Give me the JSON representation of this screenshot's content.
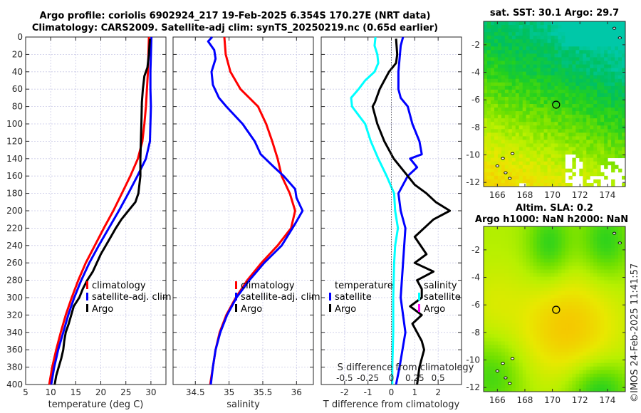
{
  "header": {
    "title_line1": "Argo profile: coriolis 6902924_217 19-Feb-2025 6.354S 170.27E (NRT data)",
    "title_line2": "Climatology: CARS2009. Satellite-adj clim: synTS_20250219.nc (0.65d earlier)"
  },
  "watermark": "©IMOS 24-Feb-2025 11:41:57",
  "colors": {
    "climatology": "#ff0000",
    "satellite": "#0000ff",
    "argo": "#000000",
    "salinity_satellite": "#00ffff",
    "salinity_argo": "#ff00ff"
  },
  "chart_data": [
    {
      "type": "line",
      "id": "temperature",
      "xlabel": "temperature (deg C)",
      "ylabel": "",
      "xlim": [
        5,
        33
      ],
      "ylim": [
        400,
        0
      ],
      "xticks": [
        5,
        10,
        15,
        20,
        25,
        30
      ],
      "yticks": [
        0,
        20,
        40,
        60,
        80,
        100,
        120,
        140,
        160,
        180,
        200,
        220,
        240,
        260,
        280,
        300,
        320,
        340,
        360,
        380,
        400
      ],
      "grid": true,
      "legend": {
        "placement": "lower-middle",
        "entries": [
          "climatology",
          "satellite-adj. clim",
          "Argo"
        ]
      },
      "series": [
        {
          "name": "climatology",
          "color": "#ff0000",
          "depth": [
            0,
            20,
            40,
            60,
            80,
            100,
            120,
            140,
            160,
            180,
            200,
            220,
            240,
            260,
            280,
            300,
            320,
            340,
            360,
            380,
            400
          ],
          "values": [
            29.6,
            29.5,
            29.4,
            29.2,
            29.0,
            28.7,
            28.3,
            27.4,
            25.9,
            24.2,
            22.5,
            20.6,
            18.8,
            17.0,
            15.5,
            14.2,
            13.0,
            12.0,
            11.1,
            10.3,
            9.7
          ]
        },
        {
          "name": "satellite-adj. clim",
          "color": "#0000ff",
          "depth": [
            0,
            20,
            40,
            60,
            80,
            100,
            120,
            140,
            160,
            180,
            200,
            220,
            240,
            260,
            280,
            300,
            320,
            340,
            360,
            380,
            400
          ],
          "values": [
            30.1,
            30.0,
            29.9,
            29.9,
            30.0,
            29.9,
            29.8,
            29.0,
            27.3,
            25.5,
            23.6,
            21.6,
            19.6,
            17.7,
            16.1,
            14.7,
            13.5,
            12.5,
            11.5,
            10.7,
            10.1
          ]
        },
        {
          "name": "Argo",
          "color": "#000000",
          "depth": [
            2,
            20,
            35,
            45,
            60,
            75,
            100,
            120,
            140,
            160,
            180,
            190,
            200,
            210,
            220,
            230,
            240,
            250,
            260,
            270,
            280,
            290,
            300,
            310,
            320,
            330,
            340,
            350,
            360,
            370,
            380,
            390,
            400
          ],
          "values": [
            29.8,
            29.6,
            29.3,
            28.7,
            28.4,
            28.2,
            28.1,
            28.0,
            27.9,
            27.9,
            27.5,
            26.9,
            25.5,
            24.1,
            23.0,
            22.0,
            21.0,
            20.0,
            19.2,
            18.4,
            17.3,
            16.4,
            15.7,
            14.6,
            14.1,
            13.6,
            13.0,
            12.7,
            12.5,
            12.1,
            11.6,
            11.1,
            10.8
          ]
        }
      ]
    },
    {
      "type": "line",
      "id": "salinity",
      "xlabel": "salinity",
      "xlim": [
        34.17,
        36.25
      ],
      "ylim": [
        400,
        0
      ],
      "xticks": [
        34.5,
        35,
        35.5,
        36
      ],
      "grid": true,
      "legend": {
        "placement": "lower-middle",
        "entries": [
          "climatology",
          "satellite-adj. clim",
          "Argo"
        ]
      },
      "series": [
        {
          "name": "climatology",
          "color": "#ff0000",
          "depth": [
            0,
            20,
            40,
            60,
            80,
            100,
            120,
            140,
            160,
            180,
            200,
            220,
            240,
            260,
            280,
            300,
            320,
            340,
            360,
            380,
            400
          ],
          "values": [
            34.93,
            34.95,
            35.02,
            35.17,
            35.43,
            35.55,
            35.64,
            35.72,
            35.78,
            35.9,
            35.98,
            35.92,
            35.72,
            35.48,
            35.27,
            35.1,
            34.96,
            34.86,
            34.8,
            34.76,
            34.72
          ]
        },
        {
          "name": "satellite-adj. clim",
          "color": "#0000ff",
          "depth": [
            0,
            5,
            15,
            25,
            40,
            55,
            70,
            80,
            100,
            120,
            135,
            150,
            160,
            175,
            185,
            200,
            215,
            240,
            260,
            280,
            300,
            320,
            340,
            360,
            380,
            400
          ],
          "values": [
            34.75,
            34.69,
            34.78,
            34.8,
            34.74,
            34.76,
            34.85,
            34.96,
            35.2,
            35.38,
            35.47,
            35.67,
            35.81,
            35.98,
            36.0,
            36.09,
            35.98,
            35.78,
            35.52,
            35.3,
            35.11,
            34.97,
            34.87,
            34.8,
            34.76,
            34.73
          ]
        }
      ]
    },
    {
      "type": "line",
      "id": "difference",
      "xlabel": "T difference from climatology",
      "top_axis_label": "S difference from climatology",
      "xlim": [
        -3,
        3
      ],
      "ylim": [
        400,
        0
      ],
      "xticks": [
        -2,
        -1,
        0,
        1,
        2
      ],
      "s_xticks": [
        -0.5,
        -0.25,
        0,
        0.25,
        0.5
      ],
      "s_xlim": [
        -0.75,
        0.75
      ],
      "grid": true,
      "legend_temperature": {
        "placement": "lower-left",
        "title": "temperature",
        "entries": [
          "satellite",
          "Argo"
        ]
      },
      "legend_salinity": {
        "placement": "lower-right",
        "title": "salinity",
        "entries": [
          "satellite",
          "Argo"
        ]
      },
      "series": [
        {
          "name": "T satellite",
          "color": "#0000ff",
          "axis": "T",
          "depth": [
            0,
            10,
            40,
            60,
            70,
            80,
            100,
            120,
            135,
            140,
            150,
            160,
            180,
            200,
            220,
            260,
            300,
            340,
            380,
            400
          ],
          "values": [
            0.5,
            0.4,
            0.3,
            0.3,
            0.4,
            0.7,
            0.9,
            1.2,
            1.3,
            0.8,
            1.1,
            0.7,
            0.3,
            0.4,
            0.6,
            0.5,
            0.4,
            0.6,
            0.35,
            0.2
          ]
        },
        {
          "name": "T Argo",
          "color": "#000000",
          "axis": "T",
          "depth": [
            2,
            20,
            30,
            40,
            50,
            60,
            75,
            80,
            100,
            120,
            140,
            160,
            170,
            180,
            190,
            200,
            210,
            230,
            250,
            260,
            270,
            280,
            290,
            300,
            310,
            320,
            330,
            340,
            350,
            360,
            370,
            380,
            390,
            400
          ],
          "values": [
            0.2,
            0.25,
            0.2,
            -0.1,
            -0.3,
            -0.5,
            -0.7,
            -0.8,
            -0.6,
            -0.3,
            0.1,
            0.7,
            1.0,
            1.5,
            1.9,
            2.5,
            1.8,
            1.0,
            1.5,
            1.0,
            1.8,
            1.1,
            1.3,
            1.3,
            0.8,
            1.3,
            0.9,
            1.1,
            1.3,
            1.4,
            1.3,
            1.2,
            1.15,
            1.1
          ]
        },
        {
          "name": "S satellite",
          "color": "#00ffff",
          "axis": "S",
          "depth": [
            0,
            10,
            20,
            30,
            40,
            50,
            60,
            70,
            80,
            90,
            100,
            120,
            140,
            160,
            180,
            200,
            220,
            240,
            260,
            300,
            340,
            380,
            400
          ],
          "values": [
            -0.17,
            -0.18,
            -0.15,
            -0.14,
            -0.18,
            -0.28,
            -0.35,
            -0.43,
            -0.42,
            -0.35,
            -0.28,
            -0.22,
            -0.14,
            -0.05,
            0.03,
            0.04,
            0.07,
            0.04,
            0.03,
            0.02,
            0.02,
            0.01,
            0.01
          ]
        }
      ]
    },
    {
      "type": "heatmap",
      "id": "sst-map",
      "title": "sat. SST: 30.1 Argo: 29.7",
      "xlim": [
        165,
        175.3
      ],
      "ylim": [
        -12.3,
        -0.3
      ],
      "xticks": [
        166,
        168,
        170,
        172,
        174
      ],
      "yticks": [
        -2,
        -4,
        -6,
        -8,
        -10,
        -12
      ],
      "marker": {
        "lon": 170.27,
        "lat": -6.354
      }
    },
    {
      "type": "heatmap",
      "id": "sla-map",
      "title": "Altim. SLA: 0.2",
      "subtitle": "Argo h1000: NaN h2000: NaN",
      "xlim": [
        165,
        175.3
      ],
      "ylim": [
        -12.3,
        -0.3
      ],
      "xticks": [
        166,
        168,
        170,
        172,
        174
      ],
      "yticks": [
        -2,
        -4,
        -6,
        -8,
        -10,
        -12
      ],
      "marker": {
        "lon": 170.27,
        "lat": -6.354
      }
    }
  ],
  "legends": {
    "temp": [
      "climatology",
      "satellite-adj. clim",
      "Argo"
    ],
    "sal": [
      "climatology",
      "satellite-adj. clim",
      "Argo"
    ],
    "diff_t_title": "temperature",
    "diff_t": [
      "satellite",
      "Argo"
    ],
    "diff_s_title": "salinity",
    "diff_s": [
      "satellite",
      "Argo"
    ]
  }
}
